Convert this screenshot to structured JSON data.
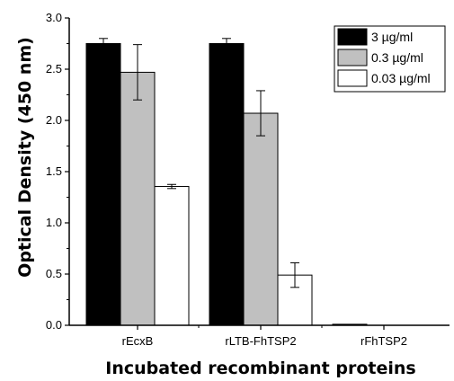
{
  "chart_data": {
    "type": "bar",
    "categories": [
      "rEcxB",
      "rLTB-FhTSP2",
      "rFhTSP2"
    ],
    "series": [
      {
        "name": "3 µg/ml",
        "color": "#000000",
        "values": [
          2.75,
          2.75,
          0.01
        ],
        "errors": [
          0.05,
          0.05,
          0.0
        ]
      },
      {
        "name": "0.3 µg/ml",
        "color": "#c0c0c0",
        "values": [
          2.47,
          2.07,
          0.0
        ],
        "errors": [
          0.27,
          0.22,
          0.0
        ]
      },
      {
        "name": "0.03 µg/ml",
        "color": "#ffffff",
        "values": [
          1.355,
          0.49,
          0.0
        ],
        "errors": [
          0.02,
          0.12,
          0.0
        ]
      }
    ],
    "xlabel": "Incubated recombinant proteins",
    "ylabel": "Optical Density (450 nm)",
    "ylim": [
      0,
      3.0
    ],
    "yticks": [
      "0.0",
      "0.5",
      "1.0",
      "1.5",
      "2.0",
      "2.5",
      "3.0"
    ],
    "legend_position": "top-right",
    "grid": false
  }
}
